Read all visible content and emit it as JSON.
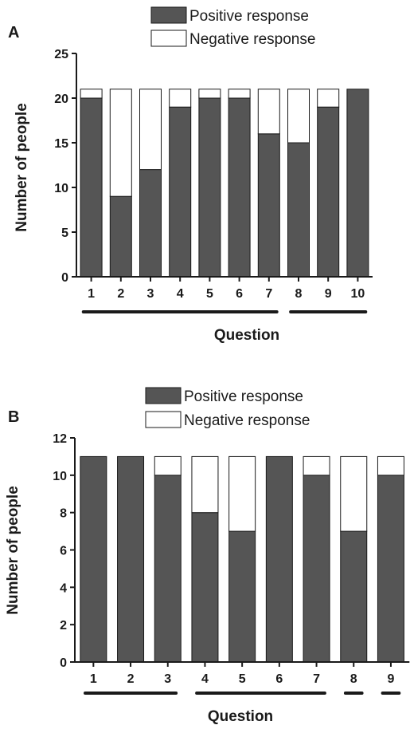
{
  "colors": {
    "positive": "#555555",
    "negative": "#ffffff",
    "axis": "#1a1a1a"
  },
  "chart_data": [
    {
      "panel": "A",
      "type": "bar",
      "stacked": true,
      "categories": [
        "1",
        "2",
        "3",
        "4",
        "5",
        "6",
        "7",
        "8",
        "9",
        "10"
      ],
      "series": [
        {
          "name": "Positive response",
          "values": [
            20,
            9,
            12,
            19,
            20,
            20,
            16,
            15,
            19,
            21
          ]
        },
        {
          "name": "Negative response",
          "values": [
            1,
            12,
            9,
            2,
            1,
            1,
            5,
            6,
            2,
            0
          ]
        }
      ],
      "xlabel": "Question",
      "ylabel": "Number of people",
      "ylim": [
        0,
        25
      ],
      "yticks": [
        0,
        5,
        10,
        15,
        20,
        25
      ],
      "grid": false,
      "legend": "top-center",
      "question_groups": [
        [
          "1",
          "7"
        ],
        [
          "8",
          "10"
        ]
      ]
    },
    {
      "panel": "B",
      "type": "bar",
      "stacked": true,
      "categories": [
        "1",
        "2",
        "3",
        "4",
        "5",
        "6",
        "7",
        "8",
        "9"
      ],
      "series": [
        {
          "name": "Positive response",
          "values": [
            11,
            11,
            10,
            8,
            7,
            11,
            10,
            7,
            10
          ]
        },
        {
          "name": "Negative response",
          "values": [
            0,
            0,
            1,
            3,
            4,
            0,
            1,
            4,
            1
          ]
        }
      ],
      "xlabel": "Question",
      "ylabel": "Number of people",
      "ylim": [
        0,
        12
      ],
      "yticks": [
        0,
        2,
        4,
        6,
        8,
        10,
        12
      ],
      "grid": false,
      "legend": "top-center",
      "question_groups": [
        [
          "1",
          "3"
        ],
        [
          "4",
          "7"
        ],
        [
          "8",
          "8"
        ],
        [
          "9",
          "9"
        ]
      ]
    }
  ]
}
